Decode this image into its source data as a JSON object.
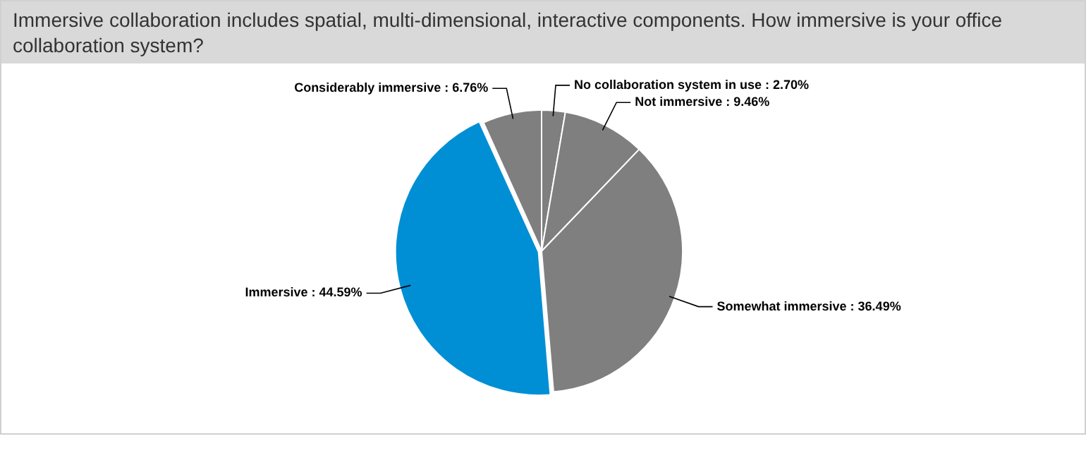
{
  "chart_data": {
    "type": "pie",
    "title": "Immersive collaboration includes spatial, multi-dimensional, interactive components. How immersive is your office collaboration system?",
    "categories": [
      "No collaboration system in use",
      "Not immersive",
      "Somewhat immersive",
      "Immersive",
      "Considerably immersive"
    ],
    "values": [
      2.7,
      9.46,
      36.49,
      44.59,
      6.76
    ],
    "value_labels": [
      "2.70%",
      "9.46%",
      "36.49%",
      "44.59%",
      "6.76%"
    ],
    "colors": [
      "#7f7f7f",
      "#7f7f7f",
      "#7f7f7f",
      "#008fd5",
      "#7f7f7f"
    ],
    "legend": false
  }
}
